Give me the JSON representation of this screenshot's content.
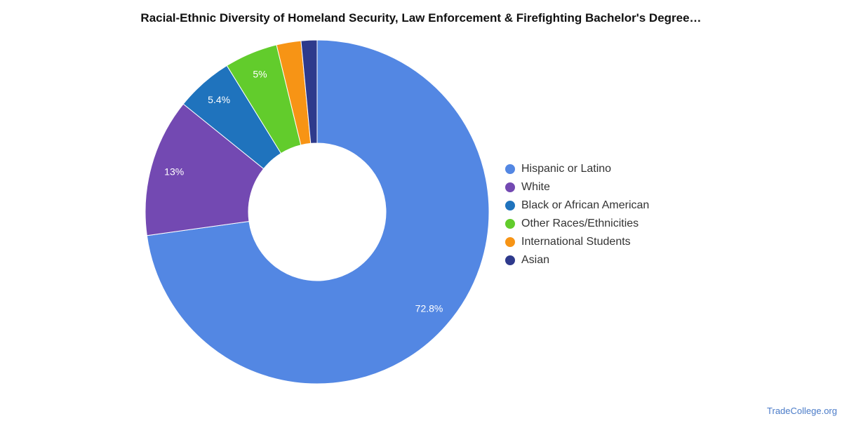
{
  "chart_data": {
    "type": "pie",
    "title": "Racial-Ethnic Diversity of Homeland Security, Law Enforcement & Firefighting Bachelor's Degree…",
    "legend_position": "right",
    "donut": true,
    "series": [
      {
        "name": "Hispanic or Latino",
        "value": 72.8,
        "label": "72.8%",
        "color": "#5387e3"
      },
      {
        "name": "White",
        "value": 13.0,
        "label": "13%",
        "color": "#7349b2"
      },
      {
        "name": "Black or African American",
        "value": 5.4,
        "label": "5.4%",
        "color": "#1f73bd"
      },
      {
        "name": "Other Races/Ethnicities",
        "value": 5.0,
        "label": "5%",
        "color": "#62cc2c"
      },
      {
        "name": "International Students",
        "value": 2.3,
        "label": "",
        "color": "#f79415"
      },
      {
        "name": "Asian",
        "value": 1.5,
        "label": "",
        "color": "#2e3a8c"
      }
    ]
  },
  "footer": {
    "source": "TradeCollege.org"
  }
}
